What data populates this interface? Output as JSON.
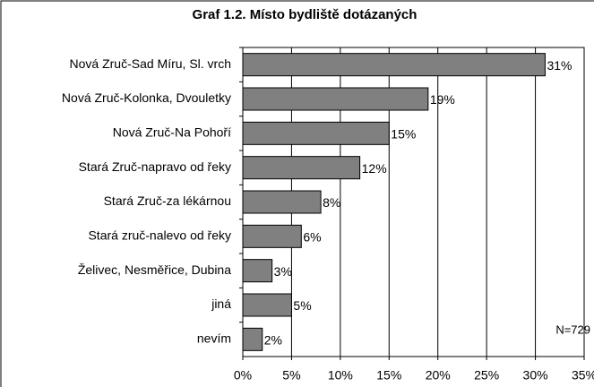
{
  "chart_data": {
    "type": "bar",
    "orientation": "horizontal",
    "title": "Graf 1.2. Místo bydliště dotázaných",
    "categories": [
      "Nová Zruč-Sad Míru, Sl. vrch",
      "Nová Zruč-Kolonka, Dvouletky",
      "Nová Zruč-Na Pohoří",
      "Stará Zruč-napravo od řeky",
      "Stará Zruč-za lékárnou",
      "Stará zruč-nalevo od řeky",
      "Želivec, Nesměřice, Dubina",
      "jiná",
      "nevím"
    ],
    "values": [
      31,
      19,
      15,
      12,
      8,
      6,
      3,
      5,
      2
    ],
    "value_labels": [
      "31%",
      "19%",
      "15%",
      "12%",
      "8%",
      "6%",
      "3%",
      "5%",
      "2%"
    ],
    "color": "#808080",
    "xlim": [
      0,
      35
    ],
    "xticks": [
      {
        "value": 0,
        "label": "0%"
      },
      {
        "value": 5,
        "label": "5%"
      },
      {
        "value": 10,
        "label": "10%"
      },
      {
        "value": 15,
        "label": "15%"
      },
      {
        "value": 20,
        "label": "20%"
      },
      {
        "value": 25,
        "label": "25%"
      },
      {
        "value": 30,
        "label": "30%"
      },
      {
        "value": 35,
        "label": "35%"
      }
    ],
    "grid": true,
    "annotation": "N=729"
  }
}
